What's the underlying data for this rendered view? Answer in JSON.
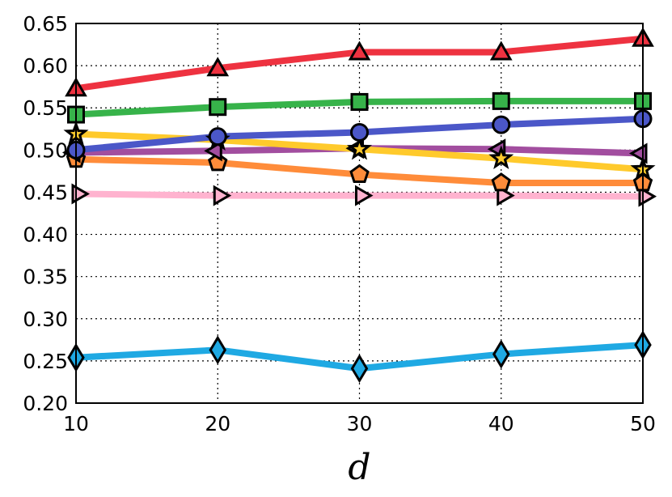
{
  "chart_data": {
    "type": "line",
    "title": "",
    "xlabel": "d",
    "ylabel": "",
    "x": [
      10,
      20,
      30,
      40,
      50
    ],
    "xlim": [
      10,
      50
    ],
    "ylim": [
      0.2,
      0.65
    ],
    "xticks": [
      "10",
      "20",
      "30",
      "40",
      "50"
    ],
    "yticks": [
      "0.20",
      "0.25",
      "0.30",
      "0.35",
      "0.40",
      "0.45",
      "0.50",
      "0.55",
      "0.60",
      "0.65"
    ],
    "grid": true,
    "series": [
      {
        "name": "series-red-triangle",
        "color": "#ee3240",
        "marker": "triangle",
        "values": [
          0.573,
          0.597,
          0.616,
          0.616,
          0.632
        ]
      },
      {
        "name": "series-green-square",
        "color": "#37b34a",
        "marker": "square",
        "values": [
          0.542,
          0.551,
          0.557,
          0.558,
          0.558
        ]
      },
      {
        "name": "series-blue-circle",
        "color": "#4b57c8",
        "marker": "circle",
        "values": [
          0.5,
          0.516,
          0.521,
          0.53,
          0.537
        ]
      },
      {
        "name": "series-yellow-star",
        "color": "#ffca2c",
        "marker": "star",
        "values": [
          0.519,
          0.512,
          0.501,
          0.49,
          0.477
        ]
      },
      {
        "name": "series-purple-left-triangle",
        "color": "#a24e9f",
        "marker": "triangle-left",
        "values": [
          0.497,
          0.499,
          0.502,
          0.501,
          0.496
        ]
      },
      {
        "name": "series-orange-pentagon",
        "color": "#ff8c3a",
        "marker": "pentagon",
        "values": [
          0.489,
          0.485,
          0.471,
          0.461,
          0.461
        ]
      },
      {
        "name": "series-pink-right-triangle",
        "color": "#ffb3cf",
        "marker": "triangle-right",
        "values": [
          0.448,
          0.446,
          0.446,
          0.446,
          0.445
        ]
      },
      {
        "name": "series-cyan-diamond",
        "color": "#1fa9e3",
        "marker": "diamond",
        "values": [
          0.254,
          0.263,
          0.241,
          0.258,
          0.269
        ]
      }
    ]
  }
}
